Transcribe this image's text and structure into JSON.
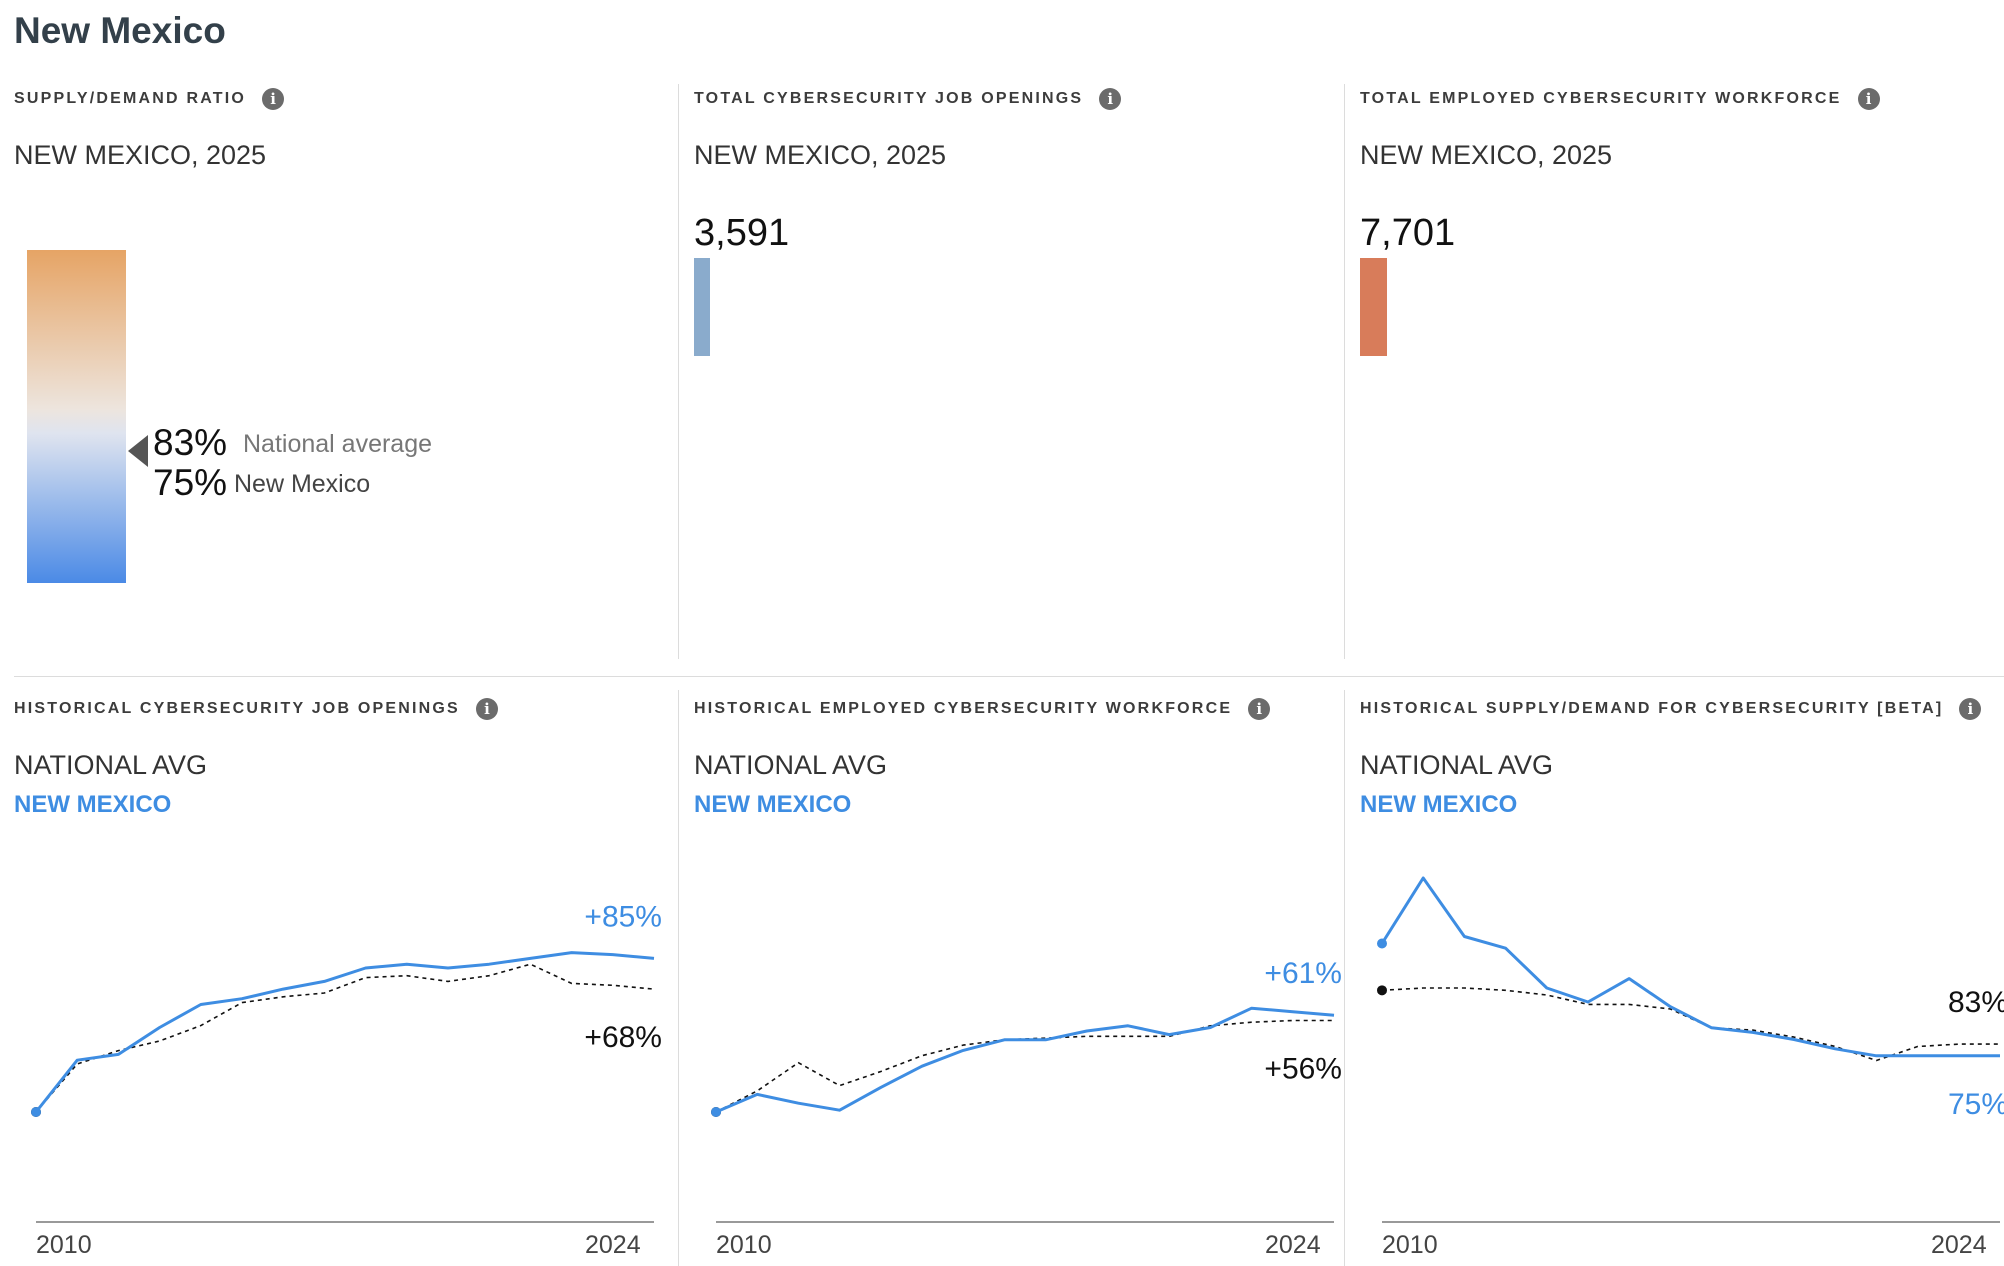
{
  "page_title": "New Mexico",
  "summary": {
    "ratio": {
      "label": "SUPPLY/DEMAND RATIO",
      "subtitle": "NEW MEXICO, 2025",
      "national_pct": "83%",
      "national_label": "National average",
      "state_pct": "75%",
      "state_label": "New Mexico"
    },
    "openings": {
      "label": "TOTAL CYBERSECURITY JOB OPENINGS",
      "subtitle": "NEW MEXICO, 2025",
      "value_text": "3,591",
      "bar_color": "#8aabcc"
    },
    "workforce": {
      "label": "TOTAL EMPLOYED CYBERSECURITY WORKFORCE",
      "subtitle": "NEW MEXICO, 2025",
      "value_text": "7,701",
      "bar_color": "#d87c5a"
    }
  },
  "colors": {
    "state_line": "#3e8de2",
    "national_line": "#111111",
    "ratio_gradient_top": "#e6a465",
    "ratio_gradient_bottom": "#4b8ae6"
  },
  "chart_data": [
    {
      "id": "hist-openings",
      "type": "line",
      "label": "HISTORICAL CYBERSECURITY JOB OPENINGS",
      "legend_national": "NATIONAL AVG",
      "legend_state": "NEW MEXICO",
      "x_ticks": [
        "2010",
        "2024"
      ],
      "x": [
        2010,
        2011,
        2012,
        2013,
        2014,
        2015,
        2016,
        2017,
        2018,
        2019,
        2020,
        2021,
        2022,
        2023,
        2024,
        2025
      ],
      "ylim": [
        0,
        100
      ],
      "series": [
        {
          "name": "NEW MEXICO",
          "values": [
            0,
            27,
            30,
            44,
            56,
            59,
            64,
            68,
            75,
            77,
            75,
            77,
            80,
            83,
            82,
            80
          ]
        },
        {
          "name": "NATIONAL AVG",
          "values": [
            0,
            25,
            32,
            37,
            45,
            57,
            60,
            62,
            70,
            71,
            68,
            71,
            77,
            67,
            66,
            64
          ]
        }
      ],
      "end_labels": {
        "state": "+85%",
        "national": "+68%"
      }
    },
    {
      "id": "hist-workforce",
      "type": "line",
      "label": "HISTORICAL EMPLOYED CYBERSECURITY WORKFORCE",
      "legend_national": "NATIONAL AVG",
      "legend_state": "NEW MEXICO",
      "x_ticks": [
        "2010",
        "2024"
      ],
      "x": [
        2010,
        2011,
        2012,
        2013,
        2014,
        2015,
        2016,
        2017,
        2018,
        2019,
        2020,
        2021,
        2022,
        2023,
        2024,
        2025
      ],
      "ylim": [
        0,
        100
      ],
      "series": [
        {
          "name": "NEW MEXICO",
          "values": [
            0,
            10,
            5,
            1,
            14,
            26,
            35,
            41,
            41,
            46,
            49,
            44,
            48,
            59,
            57,
            55
          ]
        },
        {
          "name": "NATIONAL AVG",
          "values": [
            0,
            12,
            28,
            15,
            23,
            32,
            38,
            41,
            42,
            43,
            43,
            43,
            49,
            51,
            52,
            52
          ]
        }
      ],
      "end_labels": {
        "state": "+61%",
        "national": "+56%"
      }
    },
    {
      "id": "hist-supply-demand",
      "type": "line",
      "label": "HISTORICAL SUPPLY/DEMAND FOR CYBERSECURITY [BETA]",
      "legend_national": "NATIONAL AVG",
      "legend_state": "NEW MEXICO",
      "x_ticks": [
        "2010",
        "2024"
      ],
      "x": [
        2010,
        2011,
        2012,
        2013,
        2014,
        2015,
        2016,
        2017,
        2018,
        2019,
        2020,
        2021,
        2022,
        2023,
        2024,
        2025
      ],
      "ylim": [
        0,
        100
      ],
      "series": [
        {
          "name": "NEW MEXICO",
          "values": [
            72,
            100,
            75,
            70,
            53,
            47,
            57,
            45,
            36,
            34,
            31,
            27,
            24,
            24,
            24,
            24
          ]
        },
        {
          "name": "NATIONAL AVG",
          "values": [
            52,
            53,
            53,
            52,
            50,
            46,
            46,
            44,
            36,
            35,
            32,
            28,
            22,
            28,
            29,
            29
          ]
        }
      ],
      "end_labels": {
        "state": "75%",
        "national": "83%"
      }
    }
  ]
}
